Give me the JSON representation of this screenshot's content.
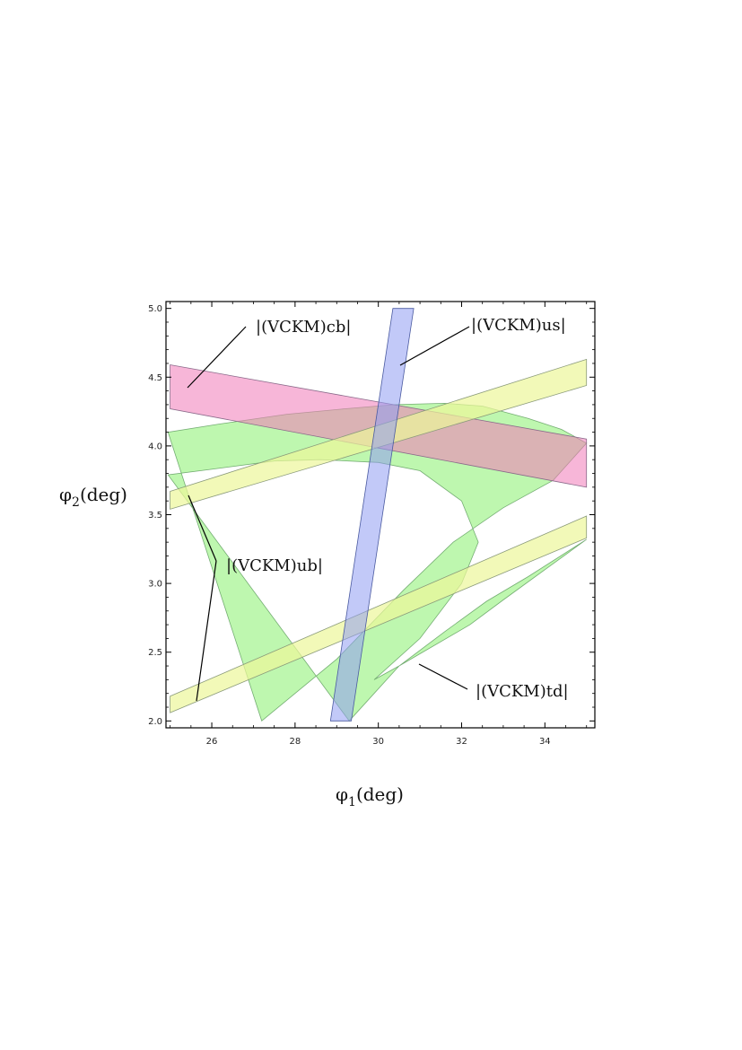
{
  "chart_data": {
    "type": "area",
    "xlabel": {
      "symbol": "φ",
      "sub": "1",
      "text": "(deg)"
    },
    "ylabel": {
      "symbol": "φ",
      "sub": "2",
      "text": "(deg)"
    },
    "xlim": [
      24.9,
      35.2
    ],
    "ylim": [
      1.95,
      5.05
    ],
    "x_ticks": [
      26,
      28,
      30,
      32,
      34
    ],
    "x_tick_labels": [
      "26",
      "28",
      "30",
      "32",
      "34"
    ],
    "y_ticks": [
      2.0,
      2.5,
      3.0,
      3.5,
      4.0,
      4.5,
      5.0
    ],
    "y_tick_labels": [
      "2.0",
      "2.5",
      "3.0",
      "3.5",
      "4.0",
      "4.5",
      "5.0"
    ],
    "series": [
      {
        "name": "|(VCKM)td|",
        "label": "|(VCKM)td|",
        "color": "#7df05f",
        "outer_boundary": [
          [
            27.2,
            2.0
          ],
          [
            29.0,
            2.45
          ],
          [
            30.6,
            2.95
          ],
          [
            31.8,
            3.3
          ],
          [
            33.0,
            3.55
          ],
          [
            34.2,
            3.75
          ],
          [
            35.0,
            4.02
          ],
          [
            34.4,
            4.12
          ],
          [
            33.6,
            4.2
          ],
          [
            32.5,
            4.29
          ],
          [
            31.6,
            4.31
          ],
          [
            30.4,
            4.3
          ],
          [
            29.2,
            4.27
          ],
          [
            27.8,
            4.23
          ],
          [
            26.2,
            4.16
          ],
          [
            24.95,
            4.1
          ]
        ],
        "inner_boundary": [
          [
            29.3,
            2.0
          ],
          [
            30.5,
            2.4
          ],
          [
            31.6,
            2.65
          ],
          [
            32.6,
            2.87
          ],
          [
            33.6,
            3.05
          ],
          [
            35.0,
            3.32
          ],
          [
            34.0,
            3.1
          ],
          [
            33.0,
            2.88
          ],
          [
            32.2,
            2.7
          ],
          [
            30.5,
            2.4
          ],
          [
            29.9,
            2.3
          ],
          [
            31.0,
            2.6
          ],
          [
            32.0,
            3.0
          ],
          [
            32.4,
            3.3
          ],
          [
            32.0,
            3.6
          ],
          [
            31.0,
            3.82
          ],
          [
            30.0,
            3.88
          ],
          [
            28.6,
            3.9
          ],
          [
            27.5,
            3.89
          ],
          [
            26.0,
            3.83
          ],
          [
            24.95,
            3.79
          ]
        ]
      },
      {
        "name": "|(VCKM)cb|",
        "label": "|(VCKM)cb|",
        "color": "#f07ab8",
        "upper": [
          [
            25.0,
            4.59
          ],
          [
            35.0,
            4.05
          ]
        ],
        "lower": [
          [
            25.0,
            4.27
          ],
          [
            35.0,
            3.7
          ]
        ]
      },
      {
        "name": "|(VCKM)ub|",
        "label": "|(VCKM)ub|",
        "color": "#ecf79a",
        "bands": [
          {
            "upper": [
              [
                25.0,
                3.67
              ],
              [
                35.0,
                4.63
              ]
            ],
            "lower": [
              [
                25.0,
                3.54
              ],
              [
                35.0,
                4.44
              ]
            ]
          },
          {
            "upper": [
              [
                25.0,
                2.18
              ],
              [
                35.0,
                3.49
              ]
            ],
            "lower": [
              [
                25.0,
                2.06
              ],
              [
                35.0,
                3.33
              ]
            ]
          }
        ]
      },
      {
        "name": "|(VCKM)us|",
        "label": "|(VCKM)us|",
        "color": "#8f9cf3",
        "corners": [
          [
            30.35,
            5.0
          ],
          [
            30.85,
            5.0
          ],
          [
            29.35,
            2.0
          ],
          [
            28.85,
            2.0
          ]
        ]
      }
    ],
    "grid": false,
    "legend": "none"
  }
}
